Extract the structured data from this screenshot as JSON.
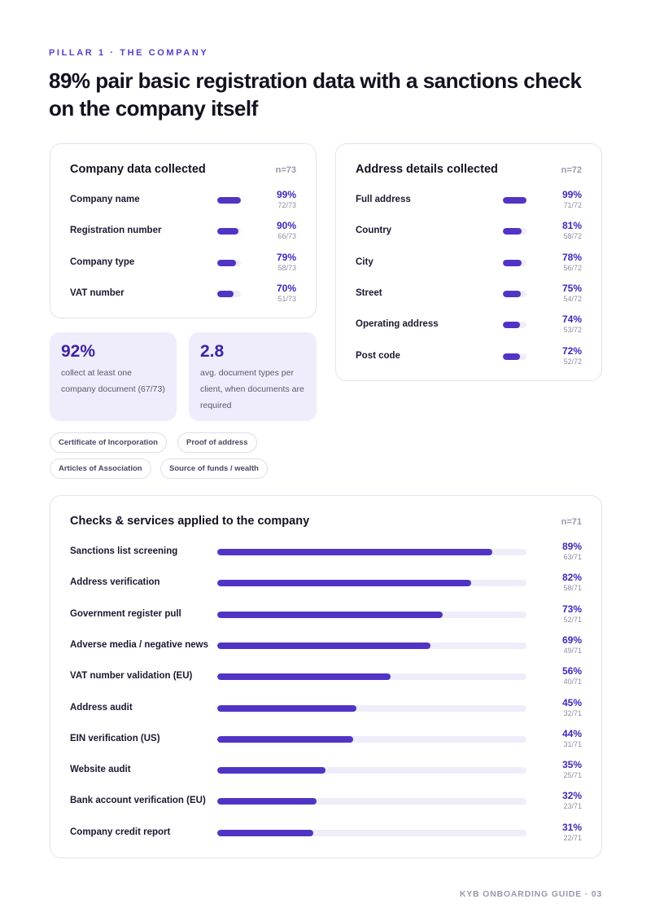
{
  "header": {
    "eyebrow": "PILLAR 1 · THE COMPANY",
    "headline": "89% pair basic registration data with a sanctions check on the company itself"
  },
  "company_data": {
    "title": "Company data collected",
    "n": "n=73",
    "items": [
      {
        "label": "Company name",
        "pct": "99%",
        "count": "72/73",
        "value": 0.99
      },
      {
        "label": "Registration number",
        "pct": "90%",
        "count": "66/73",
        "value": 0.9
      },
      {
        "label": "Company type",
        "pct": "79%",
        "count": "58/73",
        "value": 0.79
      },
      {
        "label": "VAT number",
        "pct": "70%",
        "count": "51/73",
        "value": 0.7
      }
    ]
  },
  "address_data": {
    "title": "Address details collected",
    "n": "n=72",
    "items": [
      {
        "label": "Full address",
        "pct": "99%",
        "count": "71/72",
        "value": 0.99
      },
      {
        "label": "Country",
        "pct": "81%",
        "count": "58/72",
        "value": 0.81
      },
      {
        "label": "City",
        "pct": "78%",
        "count": "56/72",
        "value": 0.78
      },
      {
        "label": "Street",
        "pct": "75%",
        "count": "54/72",
        "value": 0.75
      },
      {
        "label": "Operating address",
        "pct": "74%",
        "count": "53/72",
        "value": 0.74
      },
      {
        "label": "Post code",
        "pct": "72%",
        "count": "52/72",
        "value": 0.72
      }
    ]
  },
  "stats": [
    {
      "value": "92%",
      "desc": "collect at least one company document (67/73)"
    },
    {
      "value": "2.8",
      "desc": "avg. document types per client, when documents are required"
    }
  ],
  "document_pills": [
    "Certificate of Incorporation",
    "Proof of address",
    "Articles of Association",
    "Source of funds / wealth"
  ],
  "checks": {
    "title": "Checks & services applied to the company",
    "n": "n=71",
    "items": [
      {
        "label": "Sanctions list screening",
        "pct": "89%",
        "count": "63/71",
        "value": 0.89
      },
      {
        "label": "Address verification",
        "pct": "82%",
        "count": "58/71",
        "value": 0.82
      },
      {
        "label": "Government register pull",
        "pct": "73%",
        "count": "52/71",
        "value": 0.73
      },
      {
        "label": "Adverse media / negative news",
        "pct": "69%",
        "count": "49/71",
        "value": 0.69
      },
      {
        "label": "VAT number validation (EU)",
        "pct": "56%",
        "count": "40/71",
        "value": 0.56
      },
      {
        "label": "Address audit",
        "pct": "45%",
        "count": "32/71",
        "value": 0.45
      },
      {
        "label": "EIN verification (US)",
        "pct": "44%",
        "count": "31/71",
        "value": 0.44
      },
      {
        "label": "Website audit",
        "pct": "35%",
        "count": "25/71",
        "value": 0.35
      },
      {
        "label": "Bank account verification (EU)",
        "pct": "32%",
        "count": "23/71",
        "value": 0.32
      },
      {
        "label": "Company credit report",
        "pct": "31%",
        "count": "22/71",
        "value": 0.31
      }
    ]
  },
  "footer": "KYB ONBOARDING GUIDE · 03",
  "colors": {
    "accent": "#5234c4",
    "track": "#efedfa",
    "stat_bg": "#efedfb"
  }
}
